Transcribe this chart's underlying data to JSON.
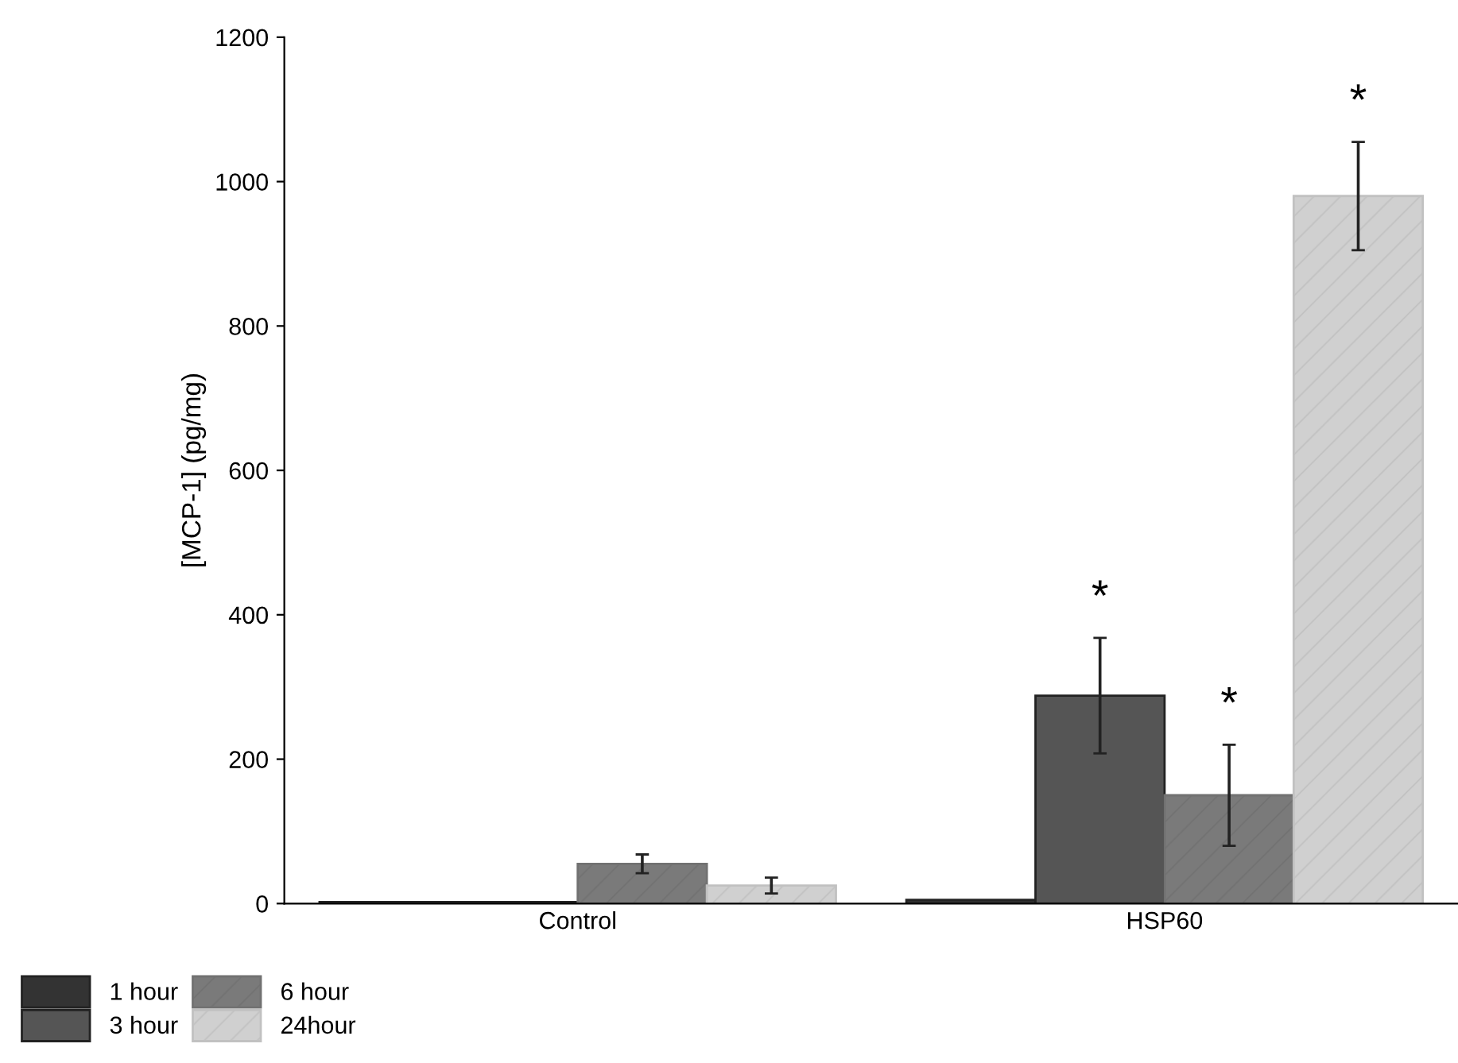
{
  "chart_data": {
    "type": "bar",
    "ylabel": "[MCP-1] (pg/mg)",
    "categories": [
      "Control",
      "HSP60"
    ],
    "series": [
      {
        "name": "1 hour",
        "color": "#333333",
        "values": [
          2,
          5
        ],
        "errors": [
          null,
          null
        ],
        "value_labels": [
          null,
          null
        ]
      },
      {
        "name": "3 hour",
        "color": "#555555",
        "values": [
          2,
          288
        ],
        "errors": [
          null,
          80
        ],
        "value_labels": [
          null,
          "*"
        ]
      },
      {
        "name": "6 hour",
        "color": "#7a7a7a",
        "values": [
          55,
          150
        ],
        "errors": [
          13,
          70
        ],
        "value_labels": [
          null,
          "*"
        ]
      },
      {
        "name": "24hour",
        "color": "#d0d0d0",
        "values": [
          25,
          980
        ],
        "errors": [
          11,
          75
        ],
        "value_labels": [
          null,
          "*"
        ]
      }
    ],
    "ylim": [
      0,
      1200
    ],
    "yticks": [
      0,
      200,
      400,
      600,
      800,
      1000,
      1200
    ],
    "grid": false,
    "legend": "bottom left"
  }
}
